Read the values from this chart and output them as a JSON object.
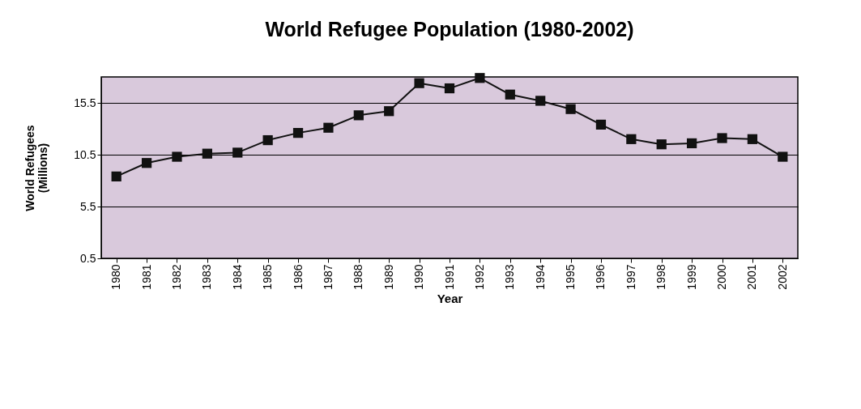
{
  "chart_data": {
    "type": "line",
    "title": "World Refugee Population (1980-2002)",
    "xlabel": "Year",
    "ylabel": "World Refugees\n(Millions)",
    "categories": [
      "1980",
      "1981",
      "1982",
      "1983",
      "1984",
      "1985",
      "1986",
      "1987",
      "1988",
      "1989",
      "1990",
      "1991",
      "1992",
      "1993",
      "1994",
      "1995",
      "1996",
      "1997",
      "1998",
      "1999",
      "2000",
      "2001",
      "2002"
    ],
    "series": [
      {
        "color": "#111111",
        "values": [
          8.4,
          9.7,
          10.3,
          10.6,
          10.7,
          11.9,
          12.6,
          13.1,
          14.3,
          14.7,
          17.4,
          16.9,
          17.9,
          16.3,
          15.7,
          14.9,
          13.4,
          12.0,
          11.5,
          11.6,
          12.1,
          12.0,
          10.3
        ]
      }
    ],
    "ylim": [
      0.5,
      18
    ],
    "yticks": [
      0.5,
      5.5,
      10.5,
      15.5
    ],
    "grid": "y",
    "marker": "square",
    "line_style": "solid",
    "legend": false
  }
}
